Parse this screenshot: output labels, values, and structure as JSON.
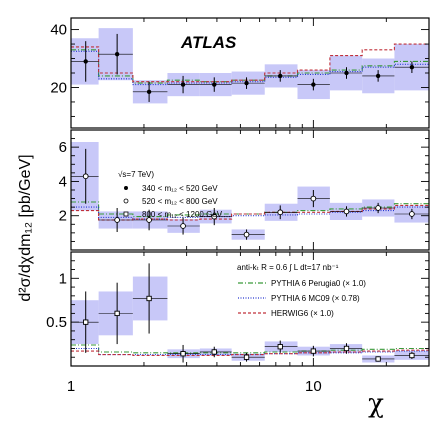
{
  "chart_data": {
    "type": "scatter",
    "x_scale": "log",
    "xlim": [
      1,
      30
    ],
    "experiment": "ATLAS",
    "xlabel": "χ",
    "ylabel": "d²σ/dχdm₁₂ [pb/GeV]",
    "x_tick_labels": [
      "1",
      "10"
    ],
    "legend_data": {
      "header": "√s=7 TeV)",
      "entries": [
        "340 < m₁₂ < 520 GeV",
        "520 < m₁₂ < 800 GeV",
        "800 < m₁₂ < 1200 GeV"
      ]
    },
    "legend_theory": {
      "header": "anti-kₜ R = 0.6   ∫ L dt=17 nb⁻¹",
      "entries": [
        "PYTHIA 6 Perugia0 (× 1.0)",
        "PYTHIA 6 MC09 (× 0.78)",
        "HERWIG6 (× 1.0)"
      ]
    },
    "colors": {
      "band": "#c8c8f8",
      "perugia": "#3a9a3a",
      "mc09": "#2838d0",
      "herwig": "#c0303a",
      "data": "#000000"
    },
    "panels": [
      {
        "name": "340 < m12 < 520 GeV",
        "ylim": [
          6,
          44
        ],
        "y_ticks": [
          20,
          40
        ],
        "x_edges": [
          1,
          1.3,
          1.8,
          2.5,
          3.4,
          4.6,
          6.3,
          8.6,
          11.7,
          15.9,
          21.6,
          30
        ],
        "data": [
          {
            "x": 1.15,
            "y": 29,
            "err": 7,
            "sys": 8
          },
          {
            "x": 1.55,
            "y": 31.5,
            "err": 7,
            "sys": 9
          },
          {
            "x": 2.1,
            "y": 18.5,
            "err": 3.5,
            "sys": 4
          },
          {
            "x": 2.9,
            "y": 21,
            "err": 3,
            "sys": 4
          },
          {
            "x": 3.9,
            "y": 21,
            "err": 2.5,
            "sys": 4
          },
          {
            "x": 5.3,
            "y": 21.5,
            "err": 2,
            "sys": 4
          },
          {
            "x": 7.3,
            "y": 24,
            "err": 2,
            "sys": 4
          },
          {
            "x": 10,
            "y": 21,
            "err": 2,
            "sys": 5
          },
          {
            "x": 13.7,
            "y": 25,
            "err": 2,
            "sys": 6
          },
          {
            "x": 18.5,
            "y": 24,
            "err": 2,
            "sys": 6
          },
          {
            "x": 25.5,
            "y": 27,
            "err": 2,
            "sys": 8
          }
        ],
        "perugia": [
          33,
          24,
          21.5,
          22.5,
          22,
          22.5,
          24,
          25,
          26,
          27.5,
          29
        ],
        "mc09": [
          32.5,
          23,
          21,
          21.5,
          21.5,
          22,
          23.5,
          24.5,
          25.5,
          27,
          28
        ],
        "herwig": [
          34,
          25,
          22,
          22,
          22,
          22.5,
          25,
          26,
          31,
          33,
          35
        ]
      },
      {
        "name": "520 < m12 < 800 GeV",
        "ylim": [
          0,
          7
        ],
        "y_ticks": [
          2,
          4,
          6
        ],
        "x_edges": [
          1,
          1.3,
          1.8,
          2.5,
          3.4,
          4.6,
          6.3,
          8.6,
          11.7,
          15.9,
          21.6,
          30
        ],
        "data": [
          {
            "x": 1.15,
            "y": 4.3,
            "err": 1.6,
            "sys": 2.0
          },
          {
            "x": 1.55,
            "y": 1.75,
            "err": 0.7,
            "sys": 0.5
          },
          {
            "x": 2.1,
            "y": 1.75,
            "err": 0.6,
            "sys": 0.5
          },
          {
            "x": 2.9,
            "y": 1.4,
            "err": 0.5,
            "sys": 0.4
          },
          {
            "x": 3.9,
            "y": 1.95,
            "err": 0.5,
            "sys": 0.4
          },
          {
            "x": 5.3,
            "y": 0.9,
            "err": 0.3,
            "sys": 0.3
          },
          {
            "x": 7.3,
            "y": 2.2,
            "err": 0.4,
            "sys": 0.5
          },
          {
            "x": 10,
            "y": 3.0,
            "err": 0.5,
            "sys": 0.7
          },
          {
            "x": 13.7,
            "y": 2.25,
            "err": 0.3,
            "sys": 0.5
          },
          {
            "x": 18.5,
            "y": 2.45,
            "err": 0.3,
            "sys": 0.5
          },
          {
            "x": 25.5,
            "y": 2.1,
            "err": 0.3,
            "sys": 0.5
          }
        ],
        "perugia": [
          2.8,
          2.1,
          1.95,
          2.05,
          2.1,
          2.1,
          2.2,
          2.3,
          2.4,
          2.5,
          2.7
        ],
        "mc09": [
          2.5,
          1.9,
          1.8,
          1.9,
          1.95,
          2.0,
          2.05,
          2.1,
          2.2,
          2.3,
          2.5
        ],
        "herwig": [
          2.3,
          1.75,
          1.8,
          1.75,
          1.8,
          2.1,
          2.2,
          2.2,
          2.25,
          2.4,
          2.6
        ]
      },
      {
        "name": "800 < m12 < 1200 GeV",
        "ylim": [
          0,
          1.3
        ],
        "y_ticks": [
          0.5,
          1
        ],
        "x_edges": [
          1,
          1.3,
          1.8,
          2.5,
          3.4,
          4.6,
          6.3,
          8.6,
          11.7,
          15.9,
          21.6,
          30
        ],
        "data": [
          {
            "x": 1.15,
            "y": 0.5,
            "err": 0.35,
            "sys": 0.25
          },
          {
            "x": 1.55,
            "y": 0.6,
            "err": 0.35,
            "sys": 0.25
          },
          {
            "x": 2.1,
            "y": 0.77,
            "err": 0.4,
            "sys": 0.25
          },
          {
            "x": 2.9,
            "y": 0.14,
            "err": 0.1,
            "sys": 0.05
          },
          {
            "x": 3.9,
            "y": 0.16,
            "err": 0.06,
            "sys": 0.04
          },
          {
            "x": 5.3,
            "y": 0.1,
            "err": 0.05,
            "sys": 0.04
          },
          {
            "x": 7.3,
            "y": 0.22,
            "err": 0.07,
            "sys": 0.06
          },
          {
            "x": 10,
            "y": 0.17,
            "err": 0.06,
            "sys": 0.05
          },
          {
            "x": 13.7,
            "y": 0.2,
            "err": 0.06,
            "sys": 0.05
          },
          {
            "x": 18.5,
            "y": 0.08,
            "err": 0.03,
            "sys": 0.04
          },
          {
            "x": 25.5,
            "y": 0.12,
            "err": 0.04,
            "sys": 0.05
          }
        ],
        "perugia": [
          0.24,
          0.16,
          0.15,
          0.15,
          0.15,
          0.15,
          0.16,
          0.17,
          0.18,
          0.19,
          0.2
        ],
        "mc09": [
          0.2,
          0.13,
          0.13,
          0.13,
          0.13,
          0.13,
          0.14,
          0.15,
          0.15,
          0.16,
          0.17
        ],
        "herwig": [
          0.17,
          0.13,
          0.12,
          0.12,
          0.12,
          0.13,
          0.14,
          0.15,
          0.16,
          0.17,
          0.18
        ]
      }
    ]
  }
}
